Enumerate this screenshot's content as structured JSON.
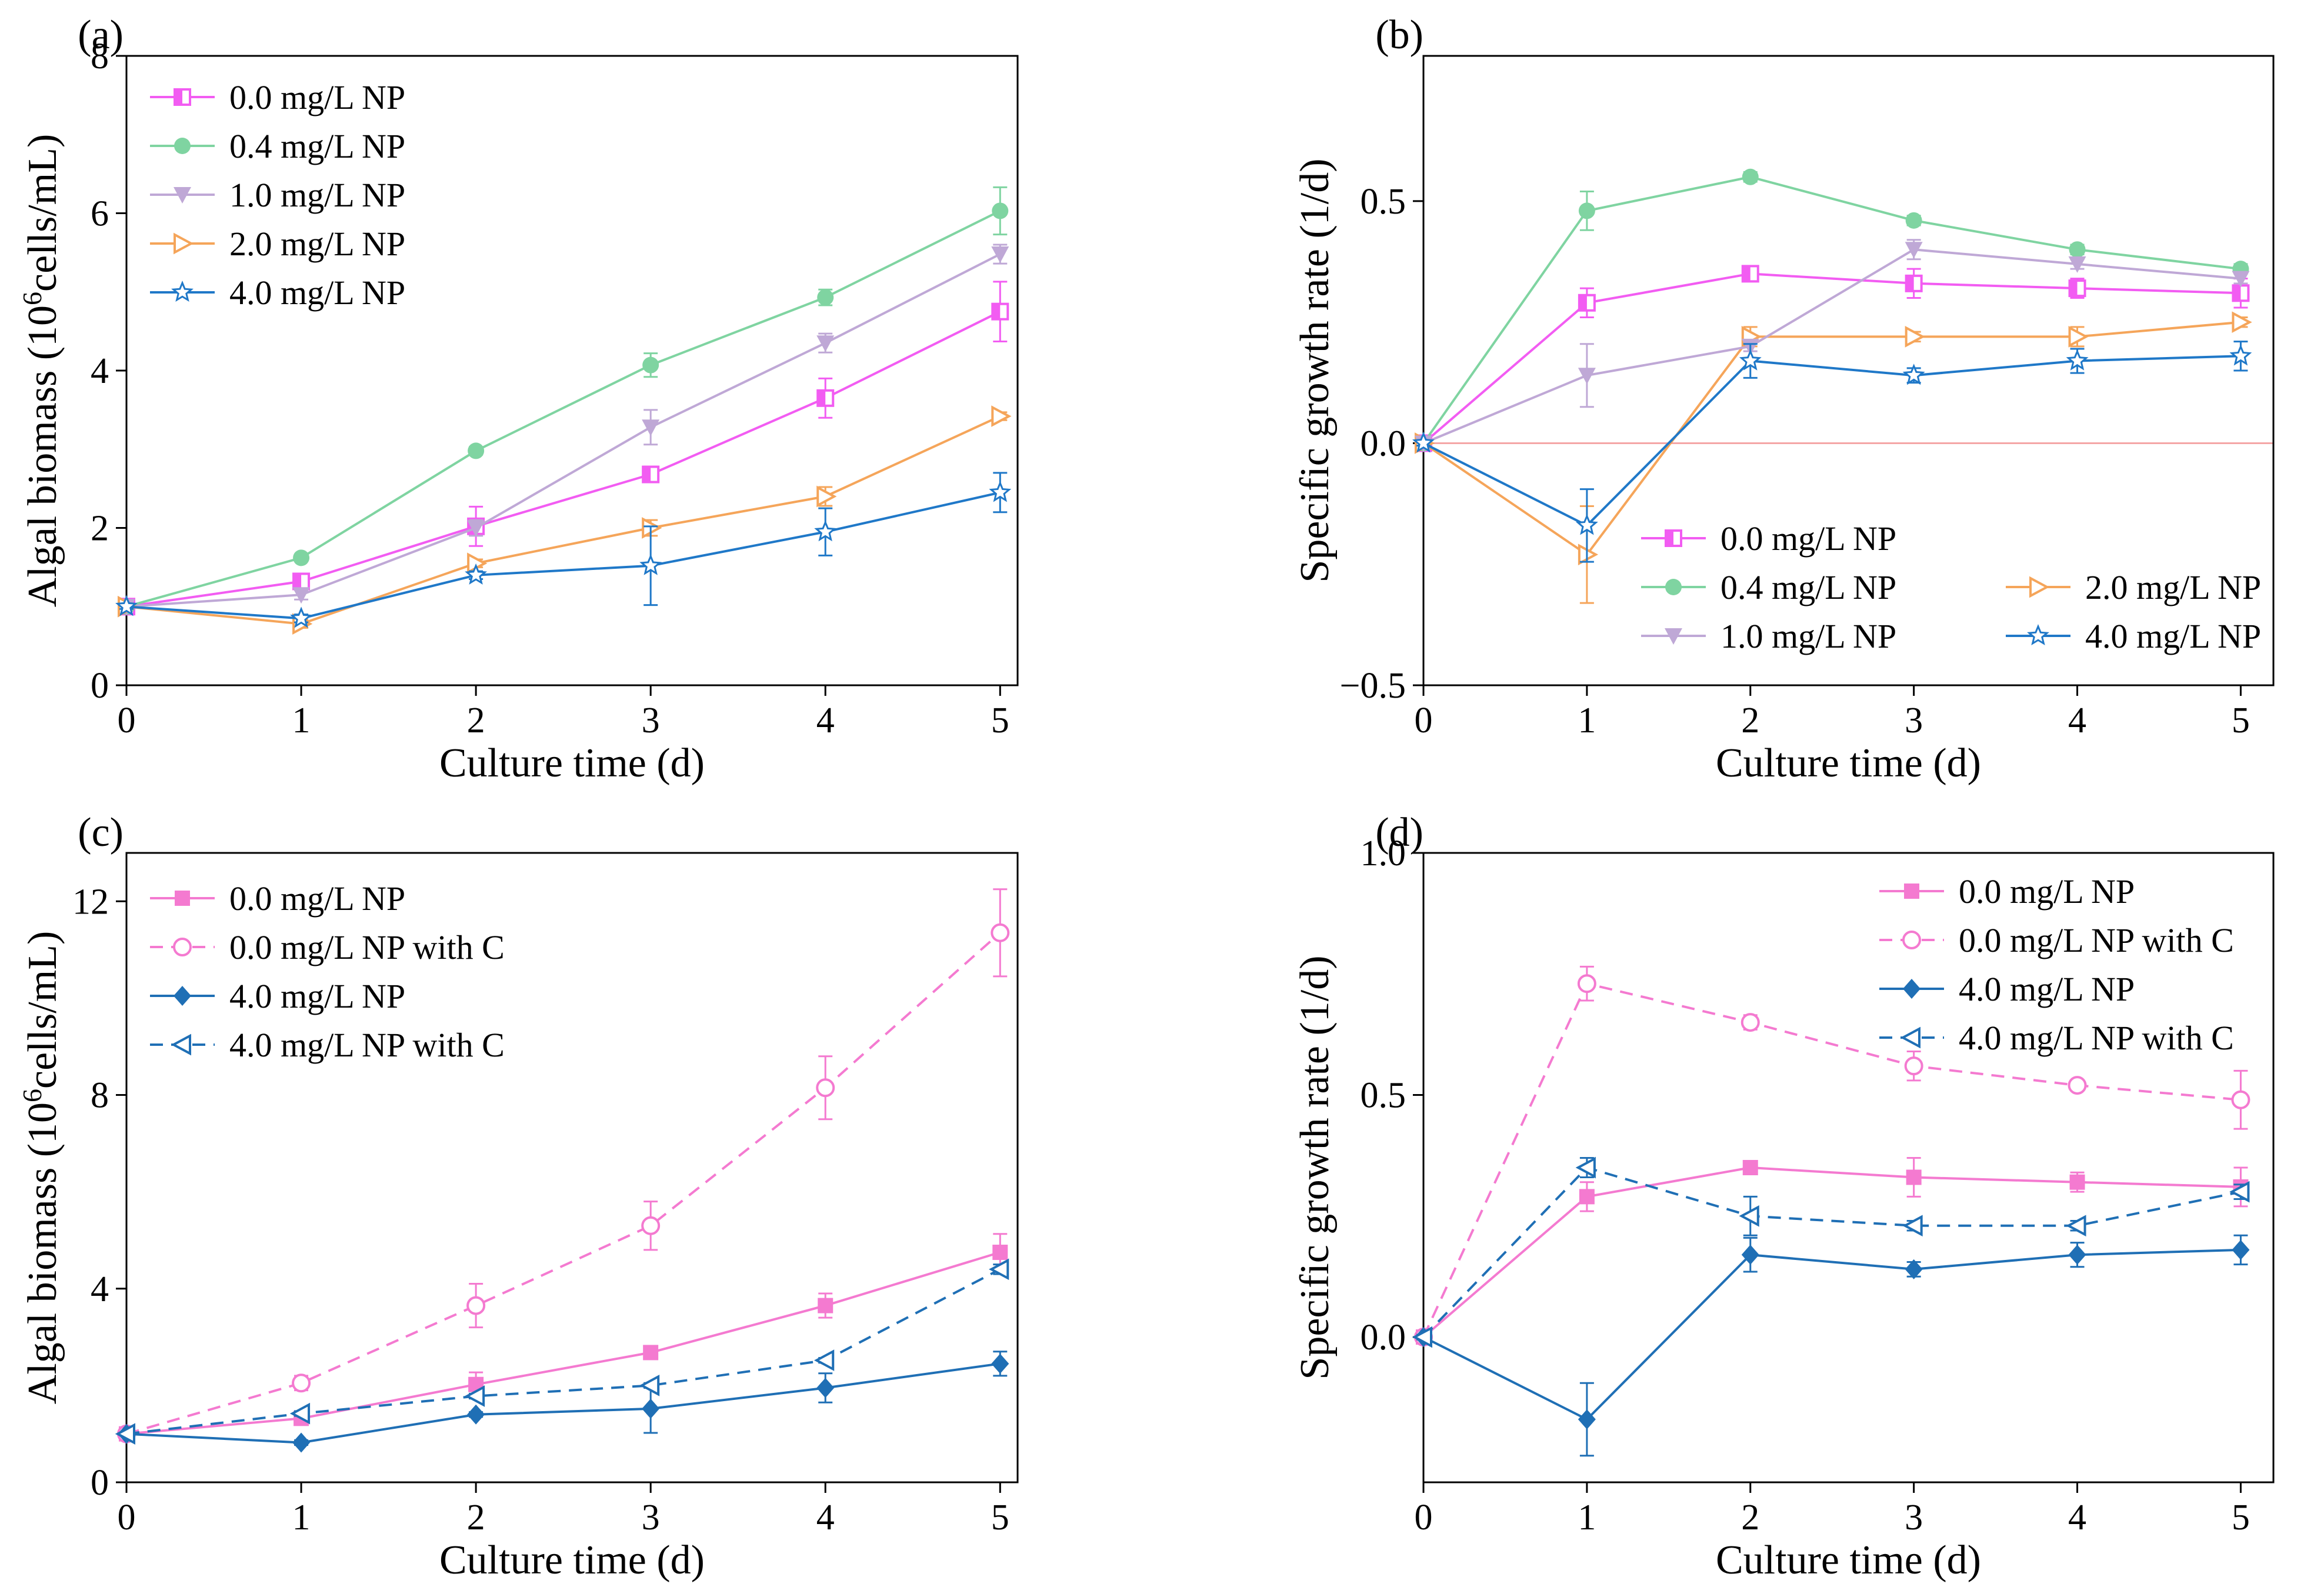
{
  "figure_title": "",
  "chart_data": [
    {
      "panel_label": "(a)",
      "type": "line",
      "title": "",
      "xlabel": "Culture time (d)",
      "ylabel": "Algal biomass (10",
      "ylabel_sup": "6",
      "ylabel_tail": "cells/mL)",
      "xlim": [
        0,
        5.1
      ],
      "ylim": [
        0,
        8
      ],
      "xticks": [
        0,
        1,
        2,
        3,
        4,
        5
      ],
      "yticks": [
        0,
        2,
        4,
        6,
        8
      ],
      "ytick_labels": [
        "0",
        "2",
        "4",
        "6",
        "8"
      ],
      "zero_line": false,
      "legend_position": "top-left",
      "legend_layout": "one-column",
      "x": [
        0,
        1,
        2,
        3,
        4,
        5
      ],
      "series": [
        {
          "name": "0.0 mg/L NP",
          "color": "#f25cf2",
          "marker": "square-half",
          "dash": "solid",
          "values": [
            1.0,
            1.32,
            2.02,
            2.68,
            3.65,
            4.75
          ],
          "errors": [
            0.03,
            0.06,
            0.25,
            0.1,
            0.25,
            0.38
          ]
        },
        {
          "name": "0.4 mg/L NP",
          "color": "#7fd4a1",
          "marker": "circle",
          "dash": "solid",
          "values": [
            1.0,
            1.62,
            2.98,
            4.07,
            4.93,
            6.03
          ],
          "errors": [
            0.03,
            0.04,
            0.05,
            0.15,
            0.1,
            0.3
          ]
        },
        {
          "name": "1.0 mg/L NP",
          "color": "#bfa8d6",
          "marker": "triangle-down",
          "dash": "solid",
          "values": [
            1.0,
            1.15,
            2.0,
            3.28,
            4.35,
            5.48
          ],
          "errors": [
            0.03,
            0.06,
            0.1,
            0.22,
            0.12,
            0.12
          ]
        },
        {
          "name": "2.0 mg/L NP",
          "color": "#f5a55a",
          "marker": "triangle-right-open",
          "dash": "solid",
          "values": [
            1.0,
            0.78,
            1.55,
            2.0,
            2.4,
            3.42
          ],
          "errors": [
            0.03,
            0.05,
            0.05,
            0.1,
            0.12,
            0.05
          ]
        },
        {
          "name": "4.0 mg/L NP",
          "color": "#1f78c8",
          "marker": "star-open",
          "dash": "solid",
          "values": [
            1.0,
            0.85,
            1.4,
            1.52,
            1.95,
            2.45
          ],
          "errors": [
            0.03,
            0.05,
            0.05,
            0.5,
            0.3,
            0.25
          ]
        }
      ]
    },
    {
      "panel_label": "(b)",
      "type": "line",
      "title": "",
      "xlabel": "Culture time (d)",
      "ylabel": "Specific growth rate (1/d)",
      "ylabel_sup": "",
      "ylabel_tail": "",
      "xlim": [
        0,
        5.2
      ],
      "ylim": [
        -0.5,
        0.8
      ],
      "xticks": [
        0,
        1,
        2,
        3,
        4,
        5
      ],
      "yticks": [
        -0.5,
        0.0,
        0.5
      ],
      "ytick_labels": [
        "−0.5",
        "0.0",
        "0.5"
      ],
      "zero_line": true,
      "zero_line_color": "#f4a6a6",
      "legend_position": "bottom-right",
      "legend_layout": "two-column",
      "x": [
        0,
        1,
        2,
        3,
        4,
        5
      ],
      "series": [
        {
          "name": "0.0 mg/L NP",
          "color": "#f25cf2",
          "marker": "square-half",
          "dash": "solid",
          "values": [
            0.0,
            0.29,
            0.35,
            0.33,
            0.32,
            0.31
          ],
          "errors": [
            0.005,
            0.03,
            0.01,
            0.03,
            0.02,
            0.03
          ]
        },
        {
          "name": "0.4 mg/L NP",
          "color": "#7fd4a1",
          "marker": "circle",
          "dash": "solid",
          "values": [
            0.0,
            0.48,
            0.55,
            0.46,
            0.4,
            0.36
          ],
          "errors": [
            0.005,
            0.04,
            0.01,
            0.01,
            0.01,
            0.01
          ]
        },
        {
          "name": "2.0 mg/L NP",
          "color": "#f5a55a",
          "marker": "triangle-right-open",
          "dash": "solid",
          "values": [
            0.0,
            -0.23,
            0.22,
            0.22,
            0.22,
            0.25
          ],
          "errors": [
            0.005,
            0.1,
            0.02,
            0.01,
            0.02,
            0.01
          ]
        },
        {
          "name": "1.0 mg/L NP",
          "color": "#bfa8d6",
          "marker": "triangle-down",
          "dash": "solid",
          "values": [
            0.0,
            0.14,
            0.2,
            0.4,
            0.37,
            0.34
          ],
          "errors": [
            0.005,
            0.065,
            0.01,
            0.02,
            0.01,
            0.01
          ]
        },
        {
          "name": "4.0 mg/L NP",
          "color": "#1f78c8",
          "marker": "star-open",
          "dash": "solid",
          "values": [
            0.0,
            -0.17,
            0.17,
            0.14,
            0.17,
            0.18
          ],
          "errors": [
            0.005,
            0.075,
            0.035,
            0.015,
            0.025,
            0.03
          ]
        }
      ]
    },
    {
      "panel_label": "(c)",
      "type": "line",
      "title": "",
      "xlabel": "Culture time (d)",
      "ylabel": "Algal biomass (10",
      "ylabel_sup": "6",
      "ylabel_tail": "cells/mL)",
      "xlim": [
        0,
        5.1
      ],
      "ylim": [
        0,
        13
      ],
      "xticks": [
        0,
        1,
        2,
        3,
        4,
        5
      ],
      "yticks": [
        0,
        4,
        8,
        12
      ],
      "ytick_labels": [
        "0",
        "4",
        "8",
        "12"
      ],
      "zero_line": false,
      "legend_position": "top-left",
      "legend_layout": "one-column",
      "x": [
        0,
        1,
        2,
        3,
        4,
        5
      ],
      "series": [
        {
          "name": "0.0 mg/L NP",
          "color": "#f47ad0",
          "marker": "square",
          "dash": "solid",
          "values": [
            1.0,
            1.32,
            2.02,
            2.68,
            3.65,
            4.75
          ],
          "errors": [
            0.03,
            0.06,
            0.25,
            0.1,
            0.25,
            0.38
          ]
        },
        {
          "name": "0.0 mg/L NP with C",
          "color": "#f47ad0",
          "marker": "circle-open",
          "dash": "dashed",
          "values": [
            1.0,
            2.05,
            3.65,
            5.3,
            8.15,
            11.35
          ],
          "errors": [
            0.03,
            0.15,
            0.45,
            0.5,
            0.65,
            0.9
          ]
        },
        {
          "name": "4.0 mg/L NP",
          "color": "#1f6fb5",
          "marker": "diamond",
          "dash": "solid",
          "values": [
            1.0,
            0.82,
            1.4,
            1.52,
            1.95,
            2.45
          ],
          "errors": [
            0.03,
            0.05,
            0.05,
            0.5,
            0.3,
            0.25
          ]
        },
        {
          "name": "4.0 mg/L NP with C",
          "color": "#1f6fb5",
          "marker": "triangle-left-open",
          "dash": "dashed",
          "values": [
            1.0,
            1.42,
            1.78,
            2.0,
            2.52,
            4.4
          ],
          "errors": [
            0.03,
            0.05,
            0.05,
            0.05,
            0.05,
            0.1
          ]
        }
      ]
    },
    {
      "panel_label": "(d)",
      "type": "line",
      "title": "",
      "xlabel": "Culture time (d)",
      "ylabel": "Specific growth rate (1/d)",
      "ylabel_sup": "",
      "ylabel_tail": "",
      "xlim": [
        0,
        5.2
      ],
      "ylim": [
        -0.3,
        1.0
      ],
      "xticks": [
        0,
        1,
        2,
        3,
        4,
        5
      ],
      "yticks": [
        0.0,
        0.5,
        1.0
      ],
      "ytick_labels": [
        "0.0",
        "0.5",
        "1.0"
      ],
      "zero_line": false,
      "legend_position": "top-right",
      "legend_layout": "one-column",
      "x": [
        0,
        1,
        2,
        3,
        4,
        5
      ],
      "series": [
        {
          "name": "0.0 mg/L NP",
          "color": "#f47ad0",
          "marker": "square",
          "dash": "solid",
          "values": [
            0.0,
            0.29,
            0.35,
            0.33,
            0.32,
            0.31
          ],
          "errors": [
            0.005,
            0.03,
            0.01,
            0.04,
            0.02,
            0.04
          ]
        },
        {
          "name": "0.0 mg/L NP with C",
          "color": "#f47ad0",
          "marker": "circle-open",
          "dash": "dashed",
          "values": [
            0.0,
            0.73,
            0.65,
            0.56,
            0.52,
            0.49
          ],
          "errors": [
            0.005,
            0.035,
            0.015,
            0.03,
            0.01,
            0.06
          ]
        },
        {
          "name": "4.0 mg/L NP",
          "color": "#1f6fb5",
          "marker": "diamond",
          "dash": "solid",
          "values": [
            0.0,
            -0.17,
            0.17,
            0.14,
            0.17,
            0.18
          ],
          "errors": [
            0.005,
            0.075,
            0.035,
            0.015,
            0.025,
            0.03
          ]
        },
        {
          "name": "4.0 mg/L NP with C",
          "color": "#1f6fb5",
          "marker": "triangle-left-open",
          "dash": "dashed",
          "values": [
            0.0,
            0.35,
            0.25,
            0.23,
            0.23,
            0.3
          ],
          "errors": [
            0.005,
            0.02,
            0.04,
            0.01,
            0.01,
            0.015
          ]
        }
      ]
    }
  ]
}
